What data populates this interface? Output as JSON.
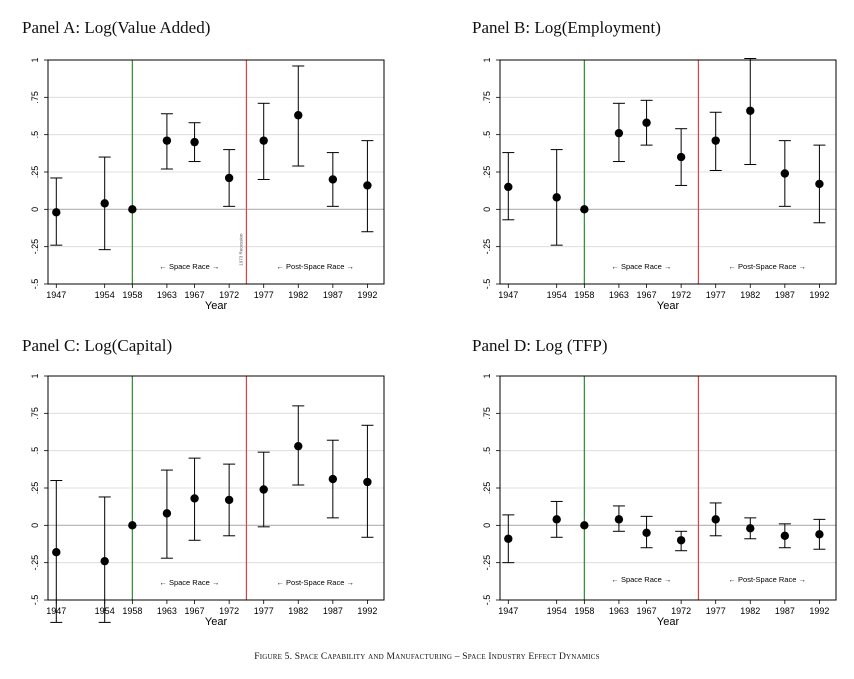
{
  "figure_caption": "Figure 5. Space Capability and Manufacturing – Space Industry Effect Dynamics",
  "colors": {
    "green_line": "#2e8b2e",
    "red_line": "#e04040",
    "grid": "#d9d9d9",
    "zero": "#b0b0b0",
    "frame": "#000000"
  },
  "shared": {
    "xlabel": "Year",
    "x_ticks": [
      "1947",
      "1954",
      "1958",
      "1963",
      "1967",
      "1972",
      "1977",
      "1982",
      "1987",
      "1992"
    ],
    "y_ticks": [
      "1",
      ".75",
      ".5",
      ".25",
      "0",
      "-.25",
      "-.5"
    ],
    "space_race_label": "← Space Race →",
    "post_space_race_label": "Post-Space Race →",
    "post_space_race_prefix": "←",
    "panel_a_extra_label": "1973 Recession"
  },
  "chart_data": [
    {
      "type": "scatter",
      "title": "Panel A: Log(Value Added)",
      "xlabel": "Year",
      "ylim": [
        -0.5,
        1
      ],
      "vlines": {
        "green": 1958,
        "red": 1974.5
      },
      "points": [
        {
          "x": "1947",
          "y": -0.02,
          "lo": -0.24,
          "hi": 0.21
        },
        {
          "x": "1954",
          "y": 0.04,
          "lo": -0.27,
          "hi": 0.35
        },
        {
          "x": "1958",
          "y": 0.0,
          "lo": null,
          "hi": null
        },
        {
          "x": "1963",
          "y": 0.46,
          "lo": 0.27,
          "hi": 0.64
        },
        {
          "x": "1967",
          "y": 0.45,
          "lo": 0.32,
          "hi": 0.58
        },
        {
          "x": "1972",
          "y": 0.21,
          "lo": 0.02,
          "hi": 0.4
        },
        {
          "x": "1977",
          "y": 0.46,
          "lo": 0.2,
          "hi": 0.71
        },
        {
          "x": "1982",
          "y": 0.63,
          "lo": 0.29,
          "hi": 0.96
        },
        {
          "x": "1987",
          "y": 0.2,
          "lo": 0.02,
          "hi": 0.38
        },
        {
          "x": "1992",
          "y": 0.16,
          "lo": -0.15,
          "hi": 0.46
        }
      ]
    },
    {
      "type": "scatter",
      "title": "Panel B: Log(Employment)",
      "xlabel": "Year",
      "ylim": [
        -0.5,
        1
      ],
      "vlines": {
        "green": 1958,
        "red": 1974.5
      },
      "points": [
        {
          "x": "1947",
          "y": 0.15,
          "lo": -0.07,
          "hi": 0.38
        },
        {
          "x": "1954",
          "y": 0.08,
          "lo": -0.24,
          "hi": 0.4
        },
        {
          "x": "1958",
          "y": 0.0,
          "lo": null,
          "hi": null
        },
        {
          "x": "1963",
          "y": 0.51,
          "lo": 0.32,
          "hi": 0.71
        },
        {
          "x": "1967",
          "y": 0.58,
          "lo": 0.43,
          "hi": 0.73
        },
        {
          "x": "1972",
          "y": 0.35,
          "lo": 0.16,
          "hi": 0.54
        },
        {
          "x": "1977",
          "y": 0.46,
          "lo": 0.26,
          "hi": 0.65
        },
        {
          "x": "1982",
          "y": 0.66,
          "lo": 0.3,
          "hi": 1.01
        },
        {
          "x": "1987",
          "y": 0.24,
          "lo": 0.02,
          "hi": 0.46
        },
        {
          "x": "1992",
          "y": 0.17,
          "lo": -0.09,
          "hi": 0.43
        }
      ]
    },
    {
      "type": "scatter",
      "title": "Panel C: Log(Capital)",
      "xlabel": "Year",
      "ylim": [
        -0.5,
        1
      ],
      "vlines": {
        "green": 1958,
        "red": 1974.5
      },
      "points": [
        {
          "x": "1947",
          "y": -0.18,
          "lo": -0.65,
          "hi": 0.3
        },
        {
          "x": "1954",
          "y": -0.24,
          "lo": -0.65,
          "hi": 0.19
        },
        {
          "x": "1958",
          "y": 0.0,
          "lo": null,
          "hi": null
        },
        {
          "x": "1963",
          "y": 0.08,
          "lo": -0.22,
          "hi": 0.37
        },
        {
          "x": "1967",
          "y": 0.18,
          "lo": -0.1,
          "hi": 0.45
        },
        {
          "x": "1972",
          "y": 0.17,
          "lo": -0.07,
          "hi": 0.41
        },
        {
          "x": "1977",
          "y": 0.24,
          "lo": -0.01,
          "hi": 0.49
        },
        {
          "x": "1982",
          "y": 0.53,
          "lo": 0.27,
          "hi": 0.8
        },
        {
          "x": "1987",
          "y": 0.31,
          "lo": 0.05,
          "hi": 0.57
        },
        {
          "x": "1992",
          "y": 0.29,
          "lo": -0.08,
          "hi": 0.67
        }
      ]
    },
    {
      "type": "scatter",
      "title": "Panel D: Log (TFP)",
      "xlabel": "Year",
      "ylim": [
        -0.5,
        1
      ],
      "vlines": {
        "green": 1958,
        "red": 1974.5
      },
      "points": [
        {
          "x": "1947",
          "y": -0.09,
          "lo": -0.25,
          "hi": 0.07
        },
        {
          "x": "1954",
          "y": 0.04,
          "lo": -0.08,
          "hi": 0.16
        },
        {
          "x": "1958",
          "y": 0.0,
          "lo": null,
          "hi": null
        },
        {
          "x": "1963",
          "y": 0.04,
          "lo": -0.04,
          "hi": 0.13
        },
        {
          "x": "1967",
          "y": -0.05,
          "lo": -0.15,
          "hi": 0.06
        },
        {
          "x": "1972",
          "y": -0.1,
          "lo": -0.17,
          "hi": -0.04
        },
        {
          "x": "1977",
          "y": 0.04,
          "lo": -0.07,
          "hi": 0.15
        },
        {
          "x": "1982",
          "y": -0.02,
          "lo": -0.09,
          "hi": 0.05
        },
        {
          "x": "1987",
          "y": -0.07,
          "lo": -0.15,
          "hi": 0.01
        },
        {
          "x": "1992",
          "y": -0.06,
          "lo": -0.16,
          "hi": 0.04
        }
      ]
    }
  ]
}
